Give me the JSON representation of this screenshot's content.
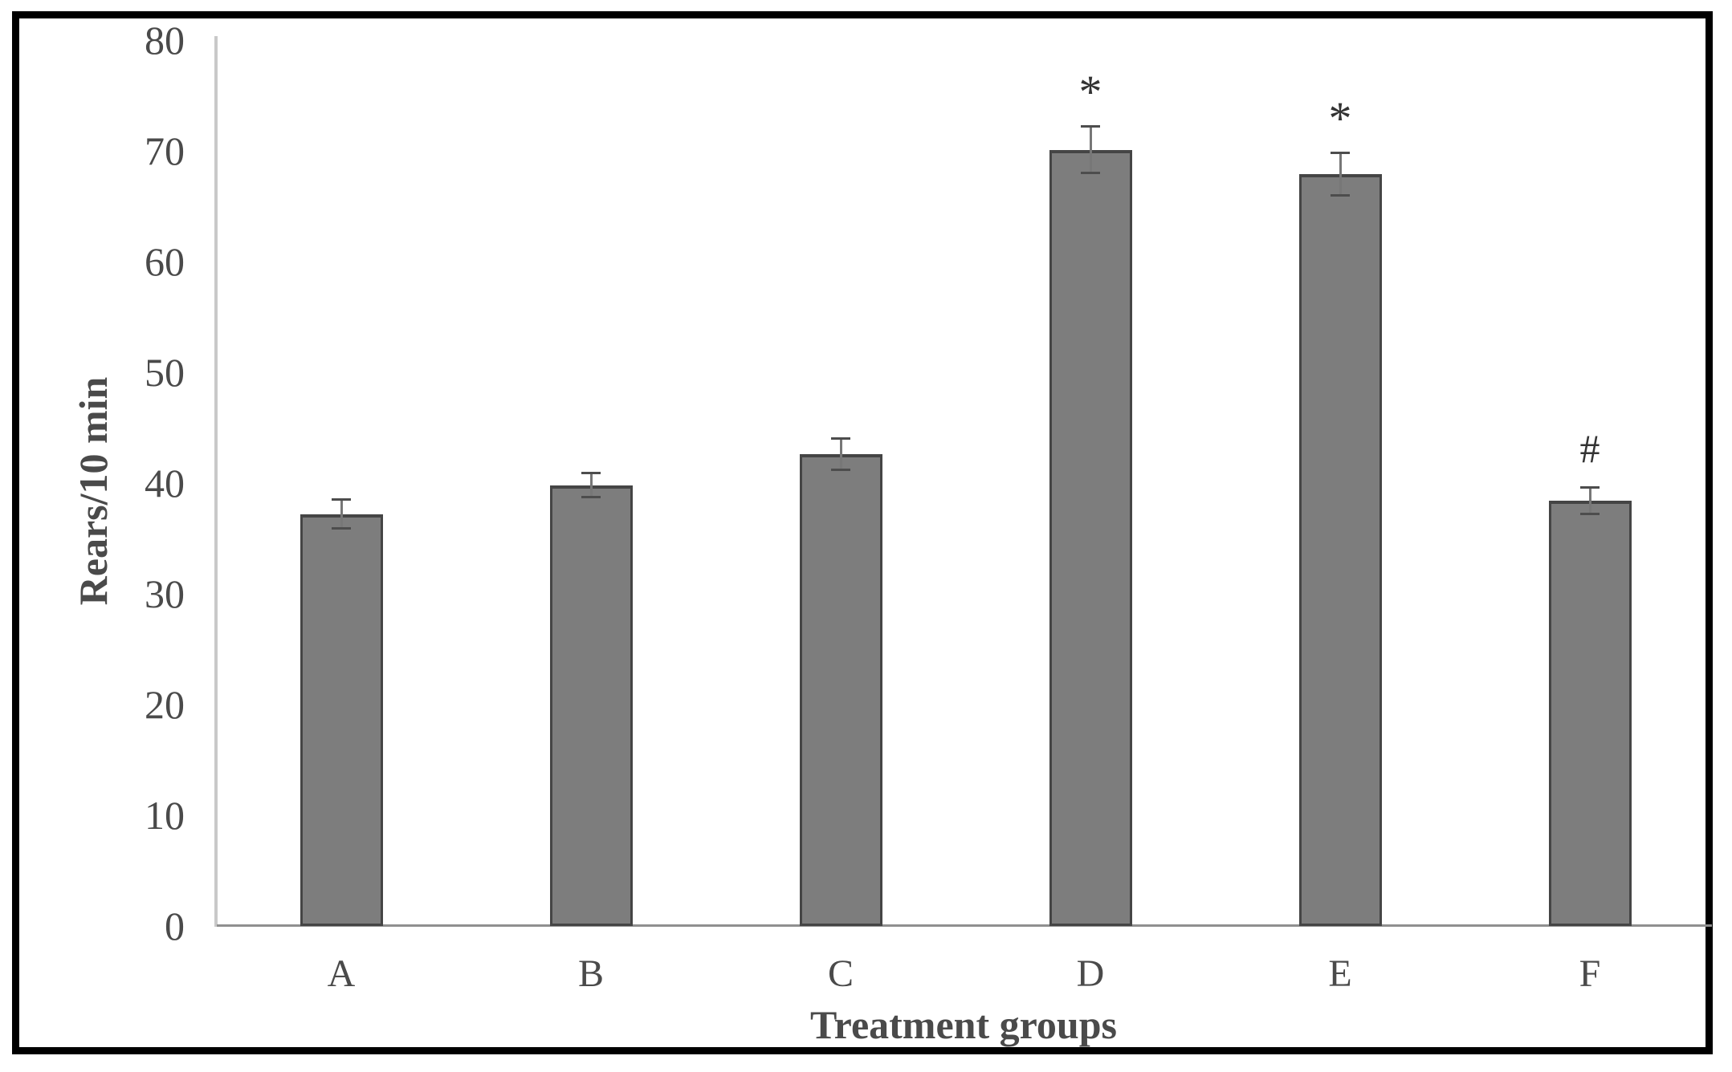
{
  "figure": {
    "background_color": "#ffffff",
    "border_color": "#000000"
  },
  "chart_data": {
    "type": "bar",
    "title": "",
    "categories": [
      "A",
      "B",
      "C",
      "D",
      "E",
      "F"
    ],
    "values": [
      37.2,
      39.8,
      42.6,
      70.1,
      67.9,
      38.4
    ],
    "errors": [
      1.3,
      1.1,
      1.4,
      2.1,
      1.9,
      1.2
    ],
    "annotations": [
      "",
      "",
      "",
      "*",
      "*",
      "#"
    ],
    "xlabel": "Treatment groups",
    "ylabel": "Rears/10 min",
    "yticks": [
      0,
      10,
      20,
      30,
      40,
      50,
      60,
      70,
      80
    ],
    "ylim": [
      0,
      80
    ],
    "grid": false,
    "legend": false,
    "bar_color": "#7d7d7d",
    "bar_border_color": "#454545",
    "error_bar_color": "#4d4d4d",
    "y_axis_line_color": "#c9c9c9",
    "x_axis_line_color": "#8f8f8f",
    "text_color": "#4a4a4a"
  }
}
